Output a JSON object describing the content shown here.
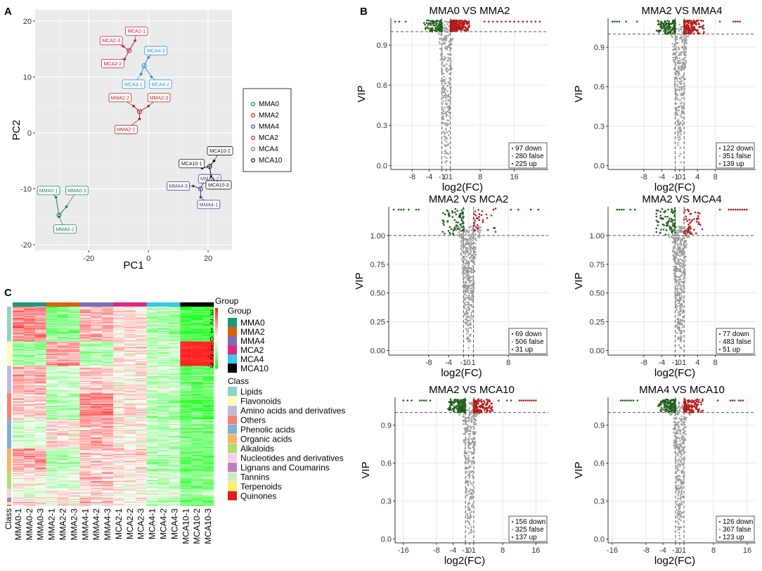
{
  "panels": {
    "a": "A",
    "b": "B",
    "c": "C"
  },
  "chart_data": [
    {
      "type": "scatter",
      "id": "pca",
      "title": "",
      "xlabel": "PC1",
      "ylabel": "PC2",
      "xlim": [
        -38,
        28
      ],
      "ylim": [
        -21,
        22
      ],
      "xticks": [
        -20,
        0,
        20
      ],
      "yticks": [
        -20,
        -10,
        0,
        10,
        20
      ],
      "legend": {
        "placement": "right",
        "entries": [
          {
            "name": "MMA0",
            "color": "#1b7e5a"
          },
          {
            "name": "MMA2",
            "color": "#b22222"
          },
          {
            "name": "MMA4",
            "color": "#4b3a8c"
          },
          {
            "name": "MCA2",
            "color": "#c8174f"
          },
          {
            "name": "MCA4",
            "color": "#2a8fd4"
          },
          {
            "name": "MCA10",
            "color": "#111111"
          }
        ]
      },
      "groups": [
        {
          "name": "MMA0",
          "color": "#1b7e5a",
          "centroid": [
            -30,
            -14.7
          ],
          "points": [
            {
              "label": "MMA0-1",
              "x": -31,
              "y": -11.5,
              "lx": -33.5,
              "ly": -10.3
            },
            {
              "label": "MMA0-3",
              "x": -27.5,
              "y": -13.2,
              "lx": -24,
              "ly": -10.3
            },
            {
              "label": "MMA0-2",
              "x": -30,
              "y": -15,
              "lx": -28,
              "ly": -17.2
            }
          ]
        },
        {
          "name": "MMA2",
          "color": "#b22222",
          "centroid": [
            -3,
            3.8
          ],
          "points": [
            {
              "label": "MMA2-2",
              "x": -5,
              "y": 4.8,
              "lx": -9.5,
              "ly": 6.3
            },
            {
              "label": "MMA2-3",
              "x": 0,
              "y": 4.8,
              "lx": 3.5,
              "ly": 6.3
            },
            {
              "label": "MMA2-1",
              "x": -3,
              "y": 2.5,
              "lx": -7.5,
              "ly": 0.6
            }
          ]
        },
        {
          "name": "MMA4",
          "color": "#4b3a8c",
          "centroid": [
            17.5,
            -10
          ],
          "points": [
            {
              "label": "MMA4-3",
              "x": 15,
              "y": -9.5,
              "lx": 10,
              "ly": -9.5
            },
            {
              "label": "MMA4-2",
              "x": 19,
              "y": -8,
              "lx": 20.5,
              "ly": -8.2
            },
            {
              "label": "MMA4-1",
              "x": 17.5,
              "y": -11.5,
              "lx": 20.2,
              "ly": -12.8
            }
          ]
        },
        {
          "name": "MCA2",
          "color": "#c8174f",
          "centroid": [
            -6.5,
            14.7
          ],
          "points": [
            {
              "label": "MCA2-1",
              "x": -4.5,
              "y": 16.5,
              "lx": -4,
              "ly": 18.2
            },
            {
              "label": "MCA2-3",
              "x": -8.5,
              "y": 15.5,
              "lx": -12.5,
              "ly": 16.5
            },
            {
              "label": "MCA2-2",
              "x": -8,
              "y": 13.2,
              "lx": -12,
              "ly": 12.4
            }
          ]
        },
        {
          "name": "MCA4",
          "color": "#2a8fd4",
          "centroid": [
            -1.5,
            12
          ],
          "points": [
            {
              "label": "MCA4-3",
              "x": 0,
              "y": 13.5,
              "lx": 2.5,
              "ly": 14.7
            },
            {
              "label": "MCA4-1",
              "x": -2.5,
              "y": 10.5,
              "lx": -5,
              "ly": 8.7
            },
            {
              "label": "MCA4-2",
              "x": 1,
              "y": 10,
              "lx": 4,
              "ly": 8.7
            }
          ]
        },
        {
          "name": "MCA10",
          "color": "#111111",
          "centroid": [
            20.5,
            -6
          ],
          "points": [
            {
              "label": "MCA10-2",
              "x": 22,
              "y": -5,
              "lx": 24,
              "ly": -3.2
            },
            {
              "label": "MCA10-1",
              "x": 18,
              "y": -6.3,
              "lx": 14.5,
              "ly": -5.5
            },
            {
              "label": "MCA10-3",
              "x": 21,
              "y": -7.8,
              "lx": 23.5,
              "ly": -9.3
            }
          ]
        }
      ]
    },
    {
      "type": "heatmap",
      "id": "heatmap",
      "columns": [
        "MMA0-1",
        "MMA0-2",
        "MMA0-3",
        "MMA2-1",
        "MMA2-2",
        "MMA2-3",
        "MMA4-1",
        "MMA4-2",
        "MMA4-3",
        "MCA2-1",
        "MCA2-2",
        "MCA2-3",
        "MCA4-1",
        "MCA4-2",
        "MCA4-3",
        "MCA10-1",
        "MCA10-2",
        "MCA10-3"
      ],
      "class_axis_label": "Class",
      "group_title": "Group",
      "scale": {
        "min": -3,
        "max": 3,
        "ticks": [
          "3",
          "2",
          "1",
          "0",
          "-1",
          "-2",
          "-3"
        ]
      },
      "groups": [
        {
          "name": "MMA0",
          "color": "#1a9a7c"
        },
        {
          "name": "MMA2",
          "color": "#d9620f"
        },
        {
          "name": "MMA4",
          "color": "#7a6fb8"
        },
        {
          "name": "MCA2",
          "color": "#e2267f"
        },
        {
          "name": "MCA4",
          "color": "#35c8e8"
        },
        {
          "name": "MCA10",
          "color": "#000000"
        }
      ],
      "class_title": "Class",
      "classes": [
        {
          "name": "Lipids",
          "color": "#8ed3c7",
          "rows": 48
        },
        {
          "name": "Flavonoids",
          "color": "#fdfdb5",
          "rows": 34
        },
        {
          "name": "Amino acids and derivatives",
          "color": "#bdbadb",
          "rows": 38
        },
        {
          "name": "Others",
          "color": "#f68173",
          "rows": 36
        },
        {
          "name": "Phenolic acids",
          "color": "#80b1d3",
          "rows": 40
        },
        {
          "name": "Organic acids",
          "color": "#fbb363",
          "rows": 32
        },
        {
          "name": "Alkaloids",
          "color": "#b3de69",
          "rows": 24
        },
        {
          "name": "Nucleotides  and derivatives",
          "color": "#fccde5",
          "rows": 12
        },
        {
          "name": "Lignans and Coumarins",
          "color": "#bc80bd",
          "rows": 6
        },
        {
          "name": "Tannins",
          "color": "#ccebc5",
          "rows": 2
        },
        {
          "name": "Terpenoids",
          "color": "#ffed6f",
          "rows": 2
        },
        {
          "name": "Quinones",
          "color": "#e41a1c",
          "rows": 1
        }
      ],
      "pattern": {
        "MMA0": [
          1,
          -0.8,
          0.6,
          0.4,
          -0.3,
          0.8,
          0.2,
          -0.2,
          0.1,
          0.5,
          0.3,
          0.5
        ],
        "MMA2": [
          -0.9,
          0.7,
          -0.4,
          -0.6,
          0.2,
          -0.6,
          -0.3,
          0.2,
          0.2,
          -0.2,
          0.1,
          0.3
        ],
        "MMA4": [
          0.6,
          -0.7,
          0.4,
          1,
          0.6,
          0.4,
          0.5,
          0.3,
          0.5,
          0.6,
          0.4,
          0.8
        ],
        "MCA2": [
          0.3,
          0.2,
          0.1,
          0.2,
          0.1,
          0.3,
          0.1,
          0.1,
          0.2,
          0.1,
          0.2,
          0.2
        ],
        "MCA4": [
          -0.6,
          -0.5,
          -0.4,
          -0.7,
          -0.5,
          -0.6,
          -0.4,
          -0.3,
          -0.5,
          -0.6,
          -0.5,
          -0.5
        ],
        "MCA10": [
          -1.5,
          2.2,
          -1.2,
          -1.4,
          -1,
          -1.2,
          -1,
          -0.8,
          -1.1,
          -1,
          -1,
          -1.3
        ]
      }
    },
    {
      "type": "scatter",
      "id": "volcano-1",
      "title": "MMA0 VS MMA2",
      "xlabel": "log2(FC)",
      "ylabel": "VIP",
      "xlim": [
        -13,
        24
      ],
      "ylim": [
        -0.03,
        1.1
      ],
      "xticks": [
        {
          "v": -8,
          "t": "-8"
        },
        {
          "v": -4,
          "t": "-4"
        },
        {
          "v": -1,
          "t": "-1"
        },
        {
          "v": 0,
          "t": "0"
        },
        {
          "v": 1,
          "t": "1"
        },
        {
          "v": 8,
          "t": "8"
        },
        {
          "v": 16,
          "t": "16"
        }
      ],
      "yticks": [
        {
          "v": 0,
          "t": "0.0"
        },
        {
          "v": 0.3,
          "t": "0.3"
        },
        {
          "v": 0.6,
          "t": "0.6"
        },
        {
          "v": 0.9,
          "t": "0.9"
        }
      ],
      "vip_threshold": 1.0,
      "fc_threshold": 1,
      "counts": {
        "down": 97,
        "false": 280,
        "up": 225
      },
      "legend": [
        "97 down",
        "280 false",
        "225 up"
      ],
      "extremes": {
        "left": [
          -12,
          -11,
          -9.5
        ],
        "right": [
          9,
          10,
          11,
          12,
          13,
          14,
          15,
          16,
          17,
          18,
          19,
          20,
          21,
          22
        ]
      }
    },
    {
      "type": "scatter",
      "id": "volcano-2",
      "title": "MMA2 VS MMA4",
      "xlabel": "log2(FC)",
      "ylabel": "VIP",
      "xlim": [
        -16,
        17
      ],
      "ylim": [
        -0.03,
        1.12
      ],
      "xticks": [
        {
          "v": -8,
          "t": "-8"
        },
        {
          "v": -4,
          "t": "-4"
        },
        {
          "v": -1,
          "t": "-1"
        },
        {
          "v": 0,
          "t": "0"
        },
        {
          "v": 1,
          "t": "1"
        },
        {
          "v": 4,
          "t": "4"
        },
        {
          "v": 8,
          "t": "8"
        }
      ],
      "yticks": [
        {
          "v": 0,
          "t": "0.0"
        },
        {
          "v": 0.3,
          "t": "0.3"
        },
        {
          "v": 0.6,
          "t": "0.6"
        },
        {
          "v": 0.9,
          "t": "0.9"
        }
      ],
      "vip_threshold": 1.0,
      "fc_threshold": 1,
      "counts": {
        "down": 122,
        "false": 351,
        "up": 139
      },
      "legend": [
        "122 down",
        "351 false",
        "139 up"
      ],
      "extremes": {
        "left": [
          -15,
          -14.5,
          -14,
          -13.5,
          -12,
          -9.5
        ],
        "right": [
          9,
          12,
          12.5,
          13,
          13.5
        ]
      }
    },
    {
      "type": "scatter",
      "id": "volcano-3",
      "title": "MMA2 VS MCA2",
      "xlabel": "log2(FC)",
      "ylabel": "VIP",
      "xlim": [
        -16,
        16
      ],
      "ylim": [
        -0.04,
        1.25
      ],
      "xticks": [
        {
          "v": -8,
          "t": "-8"
        },
        {
          "v": -4,
          "t": "-4"
        },
        {
          "v": -1,
          "t": "-1"
        },
        {
          "v": 0,
          "t": "0"
        },
        {
          "v": 1,
          "t": "1"
        },
        {
          "v": 8,
          "t": "8"
        }
      ],
      "yticks": [
        {
          "v": 0,
          "t": "0.00"
        },
        {
          "v": 0.25,
          "t": "0.25"
        },
        {
          "v": 0.5,
          "t": "0.50"
        },
        {
          "v": 0.75,
          "t": "0.75"
        },
        {
          "v": 1,
          "t": "1.00"
        }
      ],
      "vip_threshold": 1.0,
      "fc_threshold": 1,
      "counts": {
        "down": 69,
        "false": 506,
        "up": 31
      },
      "legend": [
        "69 down",
        "506 false",
        "31 up"
      ],
      "extremes": {
        "left": [
          -15,
          -14,
          -13.5,
          -13,
          -12,
          -10.5,
          -10
        ],
        "right": [
          5,
          8.5,
          10,
          12.5,
          14
        ]
      }
    },
    {
      "type": "scatter",
      "id": "volcano-4",
      "title": "MMA2 VS MCA4",
      "xlabel": "log2(FC)",
      "ylabel": "VIP",
      "xlim": [
        -16,
        17
      ],
      "ylim": [
        -0.04,
        1.25
      ],
      "xticks": [
        {
          "v": -8,
          "t": "-8"
        },
        {
          "v": -4,
          "t": "-4"
        },
        {
          "v": -1,
          "t": "-1"
        },
        {
          "v": 0,
          "t": "0"
        },
        {
          "v": 1,
          "t": "1"
        },
        {
          "v": 4,
          "t": "4"
        },
        {
          "v": 8,
          "t": "8"
        }
      ],
      "yticks": [
        {
          "v": 0,
          "t": "0.00"
        },
        {
          "v": 0.25,
          "t": "0.25"
        },
        {
          "v": 0.5,
          "t": "0.50"
        },
        {
          "v": 0.75,
          "t": "0.75"
        },
        {
          "v": 1,
          "t": "1.00"
        }
      ],
      "vip_threshold": 1.0,
      "fc_threshold": 1,
      "counts": {
        "down": 77,
        "false": 483,
        "up": 51
      },
      "legend": [
        "77 down",
        "483 false",
        "51 up"
      ],
      "extremes": {
        "left": [
          -14,
          -13.5,
          -13,
          -12.5,
          -11,
          -10
        ],
        "right": [
          9,
          11,
          11.5,
          12,
          12.5,
          13,
          13.5,
          14,
          14.5,
          15
        ]
      }
    },
    {
      "type": "scatter",
      "id": "volcano-5",
      "title": "MMA2 VS MCA10",
      "xlabel": "log2(FC)",
      "ylabel": "VIP",
      "xlim": [
        -18,
        19
      ],
      "ylim": [
        -0.03,
        1.12
      ],
      "xticks": [
        {
          "v": -16,
          "t": "-16"
        },
        {
          "v": -8,
          "t": "-8"
        },
        {
          "v": -4,
          "t": "-4"
        },
        {
          "v": -1,
          "t": "-1"
        },
        {
          "v": 0,
          "t": "0"
        },
        {
          "v": 1,
          "t": "1"
        },
        {
          "v": 8,
          "t": "8"
        },
        {
          "v": 16,
          "t": "16"
        }
      ],
      "yticks": [
        {
          "v": 0,
          "t": "0.0"
        },
        {
          "v": 0.3,
          "t": "0.3"
        },
        {
          "v": 0.6,
          "t": "0.6"
        },
        {
          "v": 0.9,
          "t": "0.9"
        }
      ],
      "vip_threshold": 1.0,
      "fc_threshold": 1,
      "counts": {
        "down": 156,
        "false": 325,
        "up": 137
      },
      "legend": [
        "156 down",
        "325 false",
        "137 up"
      ],
      "extremes": {
        "left": [
          -16,
          -15,
          -14,
          -12,
          -11.5,
          -11,
          -10.5,
          -9.5
        ],
        "right": [
          7,
          9,
          10,
          12,
          12.5,
          13,
          13.5,
          14,
          14.5,
          15,
          15.5,
          16
        ]
      }
    },
    {
      "type": "scatter",
      "id": "volcano-6",
      "title": "MMA4 VS MCA10",
      "xlabel": "log2(FC)",
      "ylabel": "VIP",
      "xlim": [
        -17,
        18
      ],
      "ylim": [
        -0.03,
        1.12
      ],
      "xticks": [
        {
          "v": -16,
          "t": "-16"
        },
        {
          "v": -8,
          "t": "-8"
        },
        {
          "v": -4,
          "t": "-4"
        },
        {
          "v": -1,
          "t": "-1"
        },
        {
          "v": 0,
          "t": "0"
        },
        {
          "v": 1,
          "t": "1"
        },
        {
          "v": 8,
          "t": "8"
        },
        {
          "v": 16,
          "t": "16"
        }
      ],
      "yticks": [
        {
          "v": 0,
          "t": "0.0"
        },
        {
          "v": 0.3,
          "t": "0.3"
        },
        {
          "v": 0.6,
          "t": "0.6"
        },
        {
          "v": 0.9,
          "t": "0.9"
        }
      ],
      "vip_threshold": 1.0,
      "fc_threshold": 1,
      "counts": {
        "down": 126,
        "false": 367,
        "up": 123
      },
      "legend": [
        "126 down",
        "367 false",
        "123 up"
      ],
      "extremes": {
        "left": [
          -14,
          -13.5,
          -13,
          -12.5,
          -12,
          -11.5,
          -11,
          -10
        ],
        "right": [
          9,
          12,
          12.5,
          13,
          14,
          14.5,
          15
        ]
      }
    }
  ]
}
